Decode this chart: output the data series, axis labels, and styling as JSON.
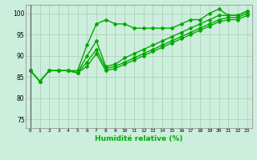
{
  "title": "",
  "xlabel": "Humidité relative (%)",
  "ylabel": "",
  "bg_color": "#cceedd",
  "grid_color": "#aaccaa",
  "line_color": "#00aa00",
  "marker": "D",
  "markersize": 2,
  "linewidth": 1.0,
  "xlim": [
    -0.5,
    23.5
  ],
  "ylim": [
    73,
    102
  ],
  "yticks": [
    75,
    80,
    85,
    90,
    95,
    100
  ],
  "xticks": [
    0,
    1,
    2,
    3,
    4,
    5,
    6,
    7,
    8,
    9,
    10,
    11,
    12,
    13,
    14,
    15,
    16,
    17,
    18,
    19,
    20,
    21,
    22,
    23
  ],
  "series": [
    [
      86.5,
      84.0,
      86.5,
      86.5,
      86.5,
      86.5,
      92.5,
      97.5,
      98.5,
      97.5,
      97.5,
      96.5,
      96.5,
      96.5,
      96.5,
      96.5,
      97.5,
      98.5,
      98.5,
      100.0,
      101.0,
      99.5,
      99.5,
      100.5
    ],
    [
      86.5,
      84.0,
      86.5,
      86.5,
      86.5,
      86.0,
      90.0,
      93.5,
      87.5,
      88.0,
      89.5,
      90.5,
      91.5,
      92.5,
      93.5,
      94.5,
      95.5,
      96.5,
      97.5,
      98.5,
      99.5,
      99.5,
      99.5,
      100.5
    ],
    [
      86.5,
      84.0,
      86.5,
      86.5,
      86.5,
      86.0,
      88.5,
      91.5,
      87.0,
      87.5,
      88.5,
      89.5,
      90.5,
      91.5,
      92.5,
      93.5,
      94.5,
      95.5,
      96.5,
      97.5,
      98.5,
      99.0,
      99.0,
      100.0
    ],
    [
      86.5,
      84.0,
      86.5,
      86.5,
      86.5,
      86.0,
      87.5,
      90.5,
      86.5,
      87.0,
      88.0,
      89.0,
      90.0,
      91.0,
      92.0,
      93.0,
      94.0,
      95.0,
      96.0,
      97.0,
      98.0,
      98.5,
      98.5,
      99.5
    ]
  ]
}
